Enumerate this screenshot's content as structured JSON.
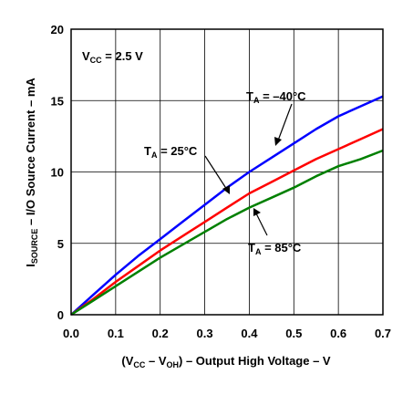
{
  "chart_data": {
    "type": "line",
    "xlabel": {
      "pre": "(V",
      "sub1": "CC",
      "mid": " – V",
      "sub2": "OH",
      "post": ") – Output High Voltage – V"
    },
    "ylabel": {
      "pre": "I",
      "sub": "SOURCE",
      "post": " – I/O Source Current – mA"
    },
    "xlim": [
      0.0,
      0.7
    ],
    "ylim": [
      0,
      20
    ],
    "xticks": [
      "0.0",
      "0.1",
      "0.2",
      "0.3",
      "0.4",
      "0.5",
      "0.6",
      "0.7"
    ],
    "yticks": [
      "0",
      "5",
      "10",
      "15",
      "20"
    ],
    "grid": true,
    "condition": {
      "pre": "V",
      "sub": "CC",
      "post": " = 2.5 V"
    },
    "series": [
      {
        "name": "T_A = –40°C",
        "color": "#0000ff",
        "x": [
          0.0,
          0.05,
          0.1,
          0.15,
          0.2,
          0.25,
          0.3,
          0.35,
          0.4,
          0.45,
          0.5,
          0.55,
          0.6,
          0.65,
          0.7
        ],
        "y": [
          0.0,
          1.4,
          2.8,
          4.1,
          5.3,
          6.5,
          7.7,
          8.9,
          10.0,
          11.0,
          12.0,
          13.0,
          13.9,
          14.6,
          15.3
        ]
      },
      {
        "name": "T_A = 25°C",
        "color": "#ff0000",
        "x": [
          0.0,
          0.05,
          0.1,
          0.15,
          0.2,
          0.25,
          0.3,
          0.35,
          0.4,
          0.45,
          0.5,
          0.55,
          0.6,
          0.65,
          0.7
        ],
        "y": [
          0.0,
          1.1,
          2.3,
          3.4,
          4.5,
          5.5,
          6.5,
          7.5,
          8.5,
          9.3,
          10.1,
          10.9,
          11.6,
          12.3,
          13.0
        ]
      },
      {
        "name": "T_A = 85°C",
        "color": "#008000",
        "x": [
          0.0,
          0.05,
          0.1,
          0.15,
          0.2,
          0.25,
          0.3,
          0.35,
          0.4,
          0.45,
          0.5,
          0.55,
          0.6,
          0.65,
          0.7
        ],
        "y": [
          0.0,
          1.0,
          2.0,
          3.0,
          4.0,
          4.9,
          5.8,
          6.7,
          7.5,
          8.2,
          8.9,
          9.7,
          10.4,
          10.9,
          11.5
        ]
      }
    ],
    "annotations": [
      {
        "pre": "T",
        "sub": "A",
        "post": " = –40°C"
      },
      {
        "pre": "T",
        "sub": "A",
        "post": " = 25°C"
      },
      {
        "pre": "T",
        "sub": "A",
        "post": " = 85°C"
      }
    ]
  }
}
